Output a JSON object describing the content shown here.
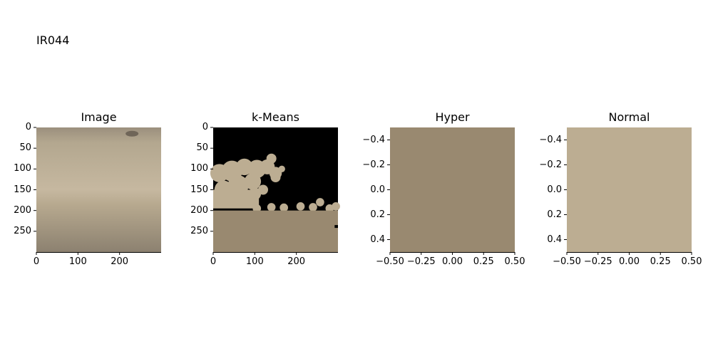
{
  "figure_title": "IR044",
  "chart_data": [
    {
      "type": "image",
      "title": "Image",
      "xlim": [
        0,
        300
      ],
      "ylim": [
        300,
        0
      ],
      "xticks": [
        "0",
        "100",
        "200"
      ],
      "xtick_values": [
        0,
        100,
        200
      ],
      "yticks": [
        "0",
        "50",
        "100",
        "150",
        "200",
        "250"
      ],
      "ytick_values": [
        0,
        50,
        100,
        150,
        200,
        250
      ],
      "colors": {
        "top": "#9b8f7d",
        "mid": "#c6b8a0",
        "bottom": "#8c8170"
      }
    },
    {
      "type": "image",
      "title": "k-Means",
      "xlim": [
        0,
        300
      ],
      "ylim": [
        300,
        0
      ],
      "xticks": [
        "0",
        "100",
        "200"
      ],
      "xtick_values": [
        0,
        100,
        200
      ],
      "yticks": [
        "0",
        "50",
        "100",
        "150",
        "200",
        "250"
      ],
      "ytick_values": [
        0,
        50,
        100,
        150,
        200,
        250
      ],
      "colors": {
        "background": "#000000",
        "cluster_light": "#bcad92",
        "cluster_dark": "#998970"
      }
    },
    {
      "type": "image",
      "title": "Hyper",
      "xlim": [
        -0.5,
        0.5
      ],
      "ylim": [
        0.5,
        -0.5
      ],
      "xticks": [
        "−0.50",
        "−0.25",
        "0.00",
        "0.25",
        "0.50"
      ],
      "xtick_values": [
        -0.5,
        -0.25,
        0,
        0.25,
        0.5
      ],
      "yticks": [
        "−0.4",
        "−0.2",
        "0.0",
        "0.2",
        "0.4"
      ],
      "ytick_values": [
        -0.4,
        -0.2,
        0,
        0.2,
        0.4
      ],
      "fill_color": "#998970"
    },
    {
      "type": "image",
      "title": "Normal",
      "xlim": [
        -0.5,
        0.5
      ],
      "ylim": [
        0.5,
        -0.5
      ],
      "xticks": [
        "−0.50",
        "−0.25",
        "0.00",
        "0.25",
        "0.50"
      ],
      "xtick_values": [
        -0.5,
        -0.25,
        0,
        0.25,
        0.5
      ],
      "yticks": [
        "−0.4",
        "−0.2",
        "0.0",
        "0.2",
        "0.4"
      ],
      "ytick_values": [
        -0.4,
        -0.2,
        0,
        0.2,
        0.4
      ],
      "fill_color": "#bcad92"
    }
  ]
}
